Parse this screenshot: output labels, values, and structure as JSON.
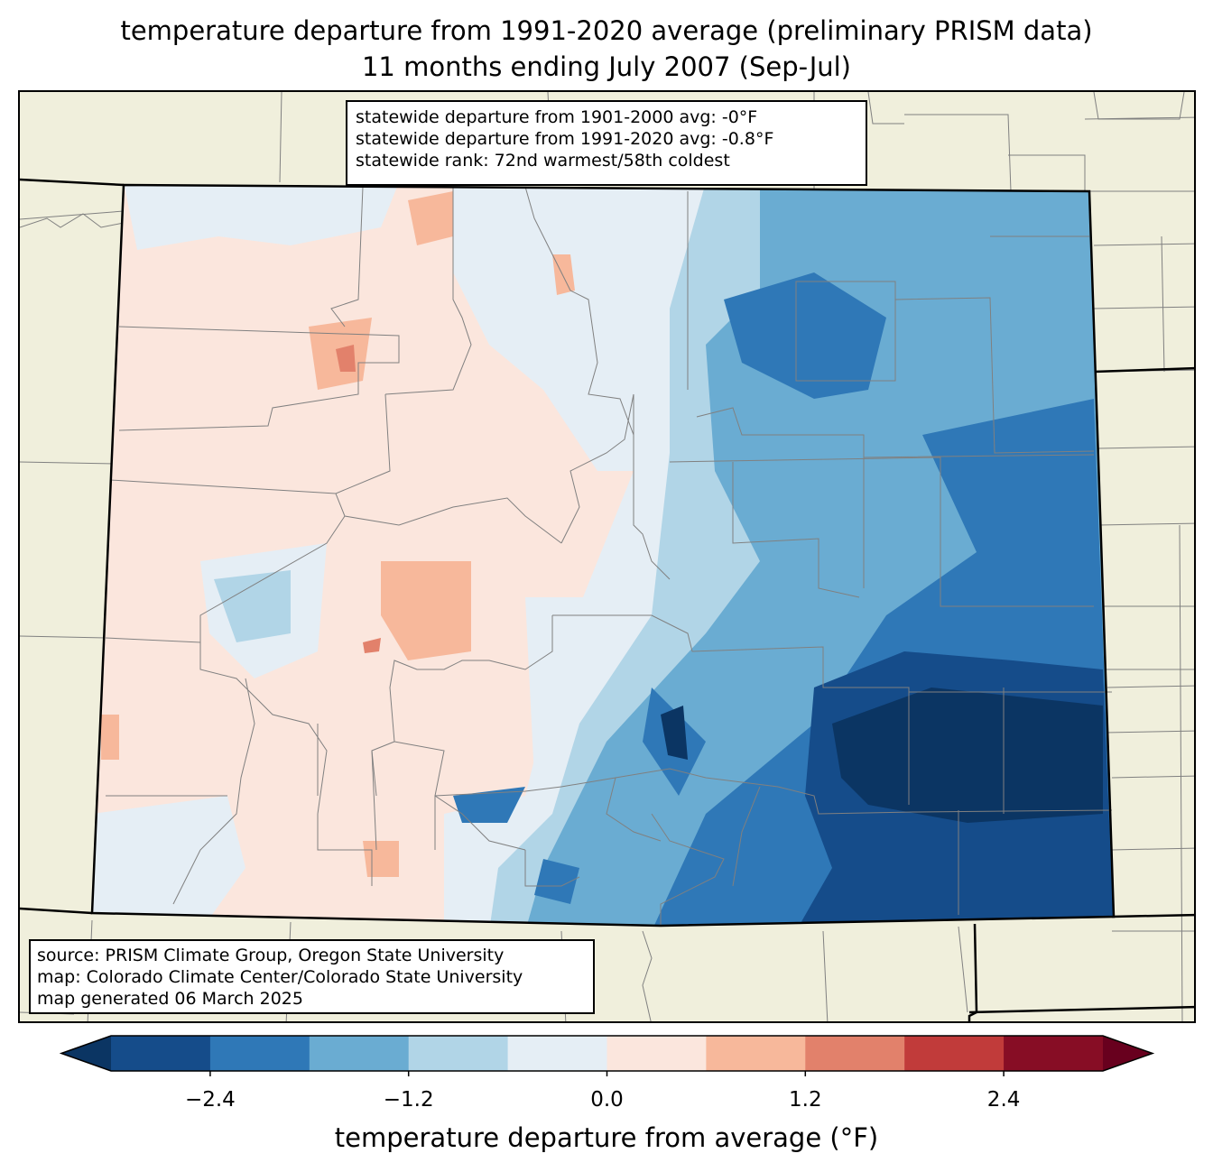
{
  "title": {
    "line1": "temperature departure from 1991-2020 average (preliminary PRISM data)",
    "line2": "11 months ending July 2007 (Sep-Jul)"
  },
  "stats": {
    "line1": "statewide departure from 1901-2000 avg: -0°F",
    "line2": "statewide departure from 1991-2020 avg: -0.8°F",
    "line3": "statewide rank: 72nd warmest/58th coldest"
  },
  "source": {
    "line1": "source: PRISM Climate Group, Oregon State University",
    "line2": "map: Colorado Climate Center/Colorado State University",
    "line3": "map generated 06 March 2025"
  },
  "colorbar": {
    "label": "temperature departure from average (°F)",
    "ticks": [
      "−2.4",
      "−1.2",
      "0.0",
      "1.2",
      "2.4"
    ],
    "tick_values": [
      -2.4,
      -1.2,
      0.0,
      1.2,
      2.4
    ],
    "range": [
      -3.0,
      3.0
    ],
    "levels": [
      -3.0,
      -2.4,
      -1.8,
      -1.2,
      -0.6,
      0.0,
      0.6,
      1.2,
      1.8,
      2.4,
      3.0
    ],
    "colors": [
      "#154c8a",
      "#2f78b7",
      "#6aacd2",
      "#b1d5e7",
      "#e5eef5",
      "#fbe6dd",
      "#f7b89b",
      "#e2816b",
      "#c13b3a",
      "#870d25"
    ],
    "under_color": "#0b3563",
    "over_color": "#68001e"
  },
  "map_colors": {
    "land": "#f0efdc",
    "county_lines": "#808080",
    "state_lines": "#000000"
  }
}
